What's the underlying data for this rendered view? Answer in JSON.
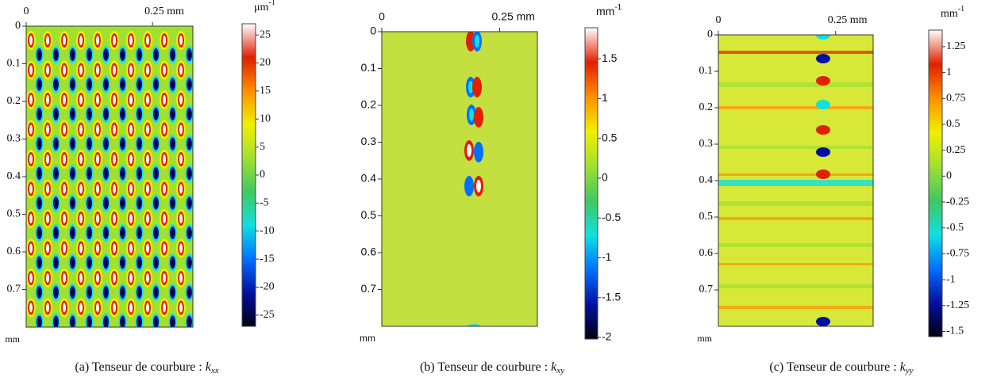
{
  "chart_data": [
    {
      "type": "heatmap",
      "pattern": "cells",
      "xlim": [
        0,
        0.33
      ],
      "xticks": [
        0,
        {
          "value": 0.25,
          "label": "0.25 mm"
        }
      ],
      "ylim": [
        0,
        0.8
      ],
      "yticks": [
        0,
        0.1,
        0.2,
        0.3,
        0.4,
        0.5,
        0.6,
        0.7
      ],
      "ylabel": "mm",
      "colorbar": {
        "unit": "μm",
        "unit_power": "-1",
        "lim": [
          -27,
          27
        ],
        "ticks": [
          25,
          20,
          15,
          10,
          5,
          0,
          -5,
          -10,
          -15,
          -20,
          -25
        ]
      },
      "colormap": [
        "#000010",
        "#0010a0",
        "#0070ff",
        "#10e0e0",
        "#40c860",
        "#a0e030",
        "#f0f000",
        "#ff9000",
        "#e02000",
        "#ffffff"
      ],
      "caption": "(a) Tenseur de courbure : ",
      "caption_symbol": "k",
      "caption_sub": "xx"
    },
    {
      "type": "heatmap",
      "pattern": "spots",
      "xlim": [
        0,
        0.33
      ],
      "xticks": [
        0,
        {
          "value": 0.25,
          "label": "0.25 mm"
        }
      ],
      "ylim": [
        0,
        0.8
      ],
      "yticks": [
        0,
        0.1,
        0.2,
        0.3,
        0.4,
        0.5,
        0.6,
        0.7
      ],
      "ylabel": "mm",
      "colorbar": {
        "unit": "mm",
        "unit_power": "-1",
        "lim": [
          -2.02,
          1.89
        ],
        "ticks": [
          1.5,
          1,
          0.5,
          0,
          -0.5,
          -1,
          -1.5,
          -2
        ]
      },
      "colormap": [
        "#000010",
        "#0010a0",
        "#0070ff",
        "#10e0e0",
        "#40c860",
        "#a0e030",
        "#f0f000",
        "#ff9000",
        "#e02000",
        "#ffffff"
      ],
      "caption": "(b) Tenseur de courbure : ",
      "caption_symbol": "k",
      "caption_sub": "xy"
    },
    {
      "type": "heatmap",
      "pattern": "stripes",
      "xlim": [
        0,
        0.33
      ],
      "xticks": [
        0,
        {
          "value": 0.25,
          "label": "0.25 mm"
        }
      ],
      "ylim": [
        0,
        0.8
      ],
      "yticks": [
        0,
        0.1,
        0.2,
        0.3,
        0.4,
        0.5,
        0.6,
        0.7
      ],
      "ylabel": "mm",
      "colorbar": {
        "unit": "mm",
        "unit_power": "-1",
        "lim": [
          -1.55,
          1.41
        ],
        "ticks": [
          1.25,
          1,
          0.75,
          0.5,
          0.25,
          0,
          -0.25,
          -0.5,
          -0.75,
          -1,
          -1.25,
          -1.5
        ]
      },
      "colormap": [
        "#000010",
        "#0010a0",
        "#0070ff",
        "#10e0e0",
        "#40c860",
        "#a0e030",
        "#f0f000",
        "#ff9000",
        "#e02000",
        "#ffffff"
      ],
      "caption": "(c) Tenseur de courbure : ",
      "caption_symbol": "k",
      "caption_sub": "yy"
    }
  ]
}
